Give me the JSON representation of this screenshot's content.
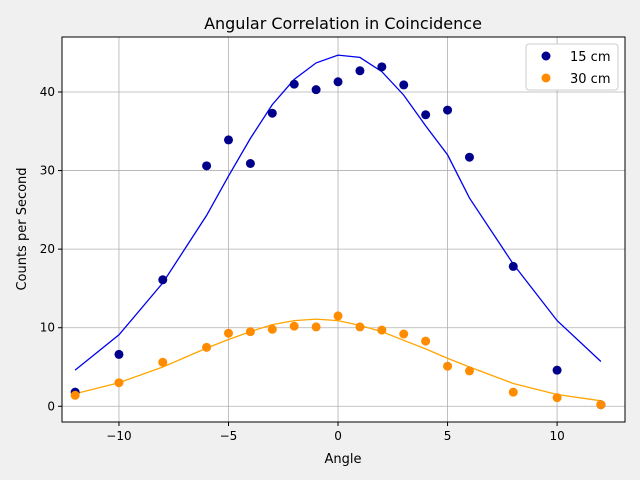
{
  "chart_data": {
    "type": "scatter",
    "title": "Angular Correlation in Coincidence",
    "xlabel": "Angle",
    "ylabel": "Counts per Second",
    "xlim": [
      -12.6,
      13.1
    ],
    "ylim": [
      -2,
      47
    ],
    "xticks": [
      -10,
      -5,
      0,
      5,
      10
    ],
    "yticks": [
      0,
      10,
      20,
      30,
      40
    ],
    "grid": true,
    "legend_position": "top-right",
    "series": [
      {
        "name": "15 cm",
        "marker_color": "#00008b",
        "line_color": "#0000ee",
        "points": [
          {
            "x": -12,
            "y": 1.8
          },
          {
            "x": -10,
            "y": 6.6
          },
          {
            "x": -8,
            "y": 16.1
          },
          {
            "x": -6,
            "y": 30.6
          },
          {
            "x": -5,
            "y": 33.9
          },
          {
            "x": -4,
            "y": 30.9
          },
          {
            "x": -3,
            "y": 37.3
          },
          {
            "x": -2,
            "y": 41.0
          },
          {
            "x": -1,
            "y": 40.3
          },
          {
            "x": 0,
            "y": 41.3
          },
          {
            "x": 1,
            "y": 42.7
          },
          {
            "x": 2,
            "y": 43.2
          },
          {
            "x": 3,
            "y": 40.9
          },
          {
            "x": 4,
            "y": 37.1
          },
          {
            "x": 5,
            "y": 37.7
          },
          {
            "x": 6,
            "y": 31.7
          },
          {
            "x": 8,
            "y": 17.8
          },
          {
            "x": 10,
            "y": 4.6
          },
          {
            "x": 12,
            "y": 0.2
          }
        ],
        "fit": [
          {
            "x": -12,
            "y": 4.6
          },
          {
            "x": -10,
            "y": 9.1
          },
          {
            "x": -8,
            "y": 15.7
          },
          {
            "x": -6,
            "y": 24.3
          },
          {
            "x": -5,
            "y": 29.3
          },
          {
            "x": -4,
            "y": 34.1
          },
          {
            "x": -3,
            "y": 38.4
          },
          {
            "x": -2,
            "y": 41.6
          },
          {
            "x": -1,
            "y": 43.7
          },
          {
            "x": 0,
            "y": 44.7
          },
          {
            "x": 1,
            "y": 44.4
          },
          {
            "x": 2,
            "y": 42.6
          },
          {
            "x": 3,
            "y": 39.6
          },
          {
            "x": 4,
            "y": 35.7
          },
          {
            "x": 5,
            "y": 32.0
          },
          {
            "x": 6,
            "y": 26.5
          },
          {
            "x": 8,
            "y": 18.1
          },
          {
            "x": 10,
            "y": 10.9
          },
          {
            "x": 12,
            "y": 5.7
          }
        ]
      },
      {
        "name": "30 cm",
        "marker_color": "#ff8c00",
        "line_color": "#ffa500",
        "points": [
          {
            "x": -12,
            "y": 1.4
          },
          {
            "x": -10,
            "y": 3.0
          },
          {
            "x": -8,
            "y": 5.6
          },
          {
            "x": -6,
            "y": 7.5
          },
          {
            "x": -5,
            "y": 9.3
          },
          {
            "x": -4,
            "y": 9.5
          },
          {
            "x": -3,
            "y": 9.8
          },
          {
            "x": -2,
            "y": 10.2
          },
          {
            "x": -1,
            "y": 10.1
          },
          {
            "x": 0,
            "y": 11.5
          },
          {
            "x": 1,
            "y": 10.1
          },
          {
            "x": 2,
            "y": 9.7
          },
          {
            "x": 3,
            "y": 9.2
          },
          {
            "x": 4,
            "y": 8.3
          },
          {
            "x": 5,
            "y": 5.1
          },
          {
            "x": 6,
            "y": 4.5
          },
          {
            "x": 8,
            "y": 1.8
          },
          {
            "x": 10,
            "y": 1.1
          },
          {
            "x": 12,
            "y": 0.2
          }
        ],
        "fit": [
          {
            "x": -12,
            "y": 1.6
          },
          {
            "x": -10,
            "y": 3.0
          },
          {
            "x": -8,
            "y": 5.0
          },
          {
            "x": -6,
            "y": 7.4
          },
          {
            "x": -5,
            "y": 8.5
          },
          {
            "x": -4,
            "y": 9.5
          },
          {
            "x": -3,
            "y": 10.4
          },
          {
            "x": -2,
            "y": 10.9
          },
          {
            "x": -1,
            "y": 11.1
          },
          {
            "x": 0,
            "y": 10.9
          },
          {
            "x": 1,
            "y": 10.3
          },
          {
            "x": 2,
            "y": 9.5
          },
          {
            "x": 3,
            "y": 8.4
          },
          {
            "x": 4,
            "y": 7.3
          },
          {
            "x": 5,
            "y": 6.1
          },
          {
            "x": 6,
            "y": 5.0
          },
          {
            "x": 8,
            "y": 2.9
          },
          {
            "x": 10,
            "y": 1.5
          },
          {
            "x": 12,
            "y": 0.7
          }
        ]
      }
    ]
  }
}
